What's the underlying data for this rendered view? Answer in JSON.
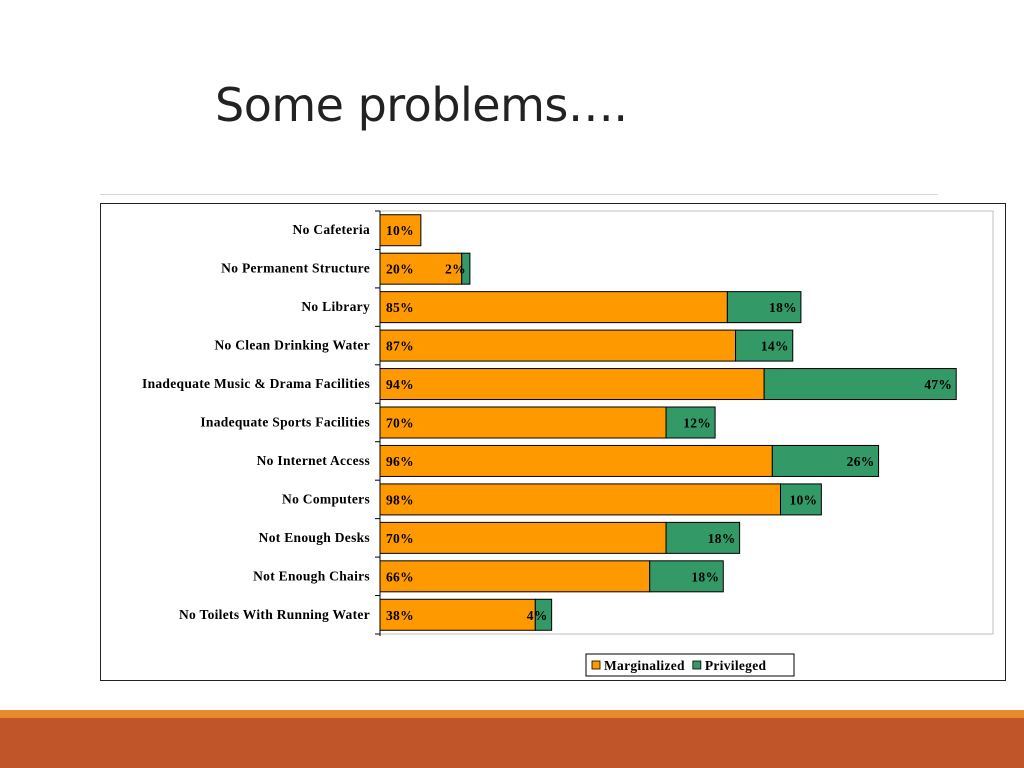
{
  "slide": {
    "title": "Some problems…."
  },
  "chart_data": {
    "type": "bar",
    "orientation": "horizontal",
    "stacked": true,
    "categories": [
      "No Cafeteria",
      "No Permanent Structure",
      "No Library",
      "No Clean Drinking Water",
      "Inadequate Music & Drama Facilities",
      "Inadequate Sports Facilities",
      "No Internet Access",
      "No Computers",
      "Not Enough Desks",
      "Not Enough Chairs",
      "No Toilets With Running Water"
    ],
    "series": [
      {
        "name": "Marginalized",
        "color": "#ff9900",
        "values": [
          10,
          20,
          85,
          87,
          94,
          70,
          96,
          98,
          70,
          66,
          38
        ],
        "labels": [
          "10%",
          "20%",
          "85%",
          "87%",
          "94%",
          "70%",
          "96%",
          "98%",
          "70%",
          "66%",
          "38%"
        ]
      },
      {
        "name": "Privileged",
        "color": "#339966",
        "values": [
          null,
          2,
          18,
          14,
          47,
          12,
          26,
          10,
          18,
          18,
          4
        ],
        "labels": [
          "",
          "2%",
          "18%",
          "14%",
          "47%",
          "12%",
          "26%",
          "10%",
          "18%",
          "18%",
          "4%"
        ]
      }
    ],
    "xlim": [
      0,
      150
    ],
    "grid": false,
    "legend": "bottom-right",
    "title": "",
    "xlabel": "",
    "ylabel": ""
  }
}
